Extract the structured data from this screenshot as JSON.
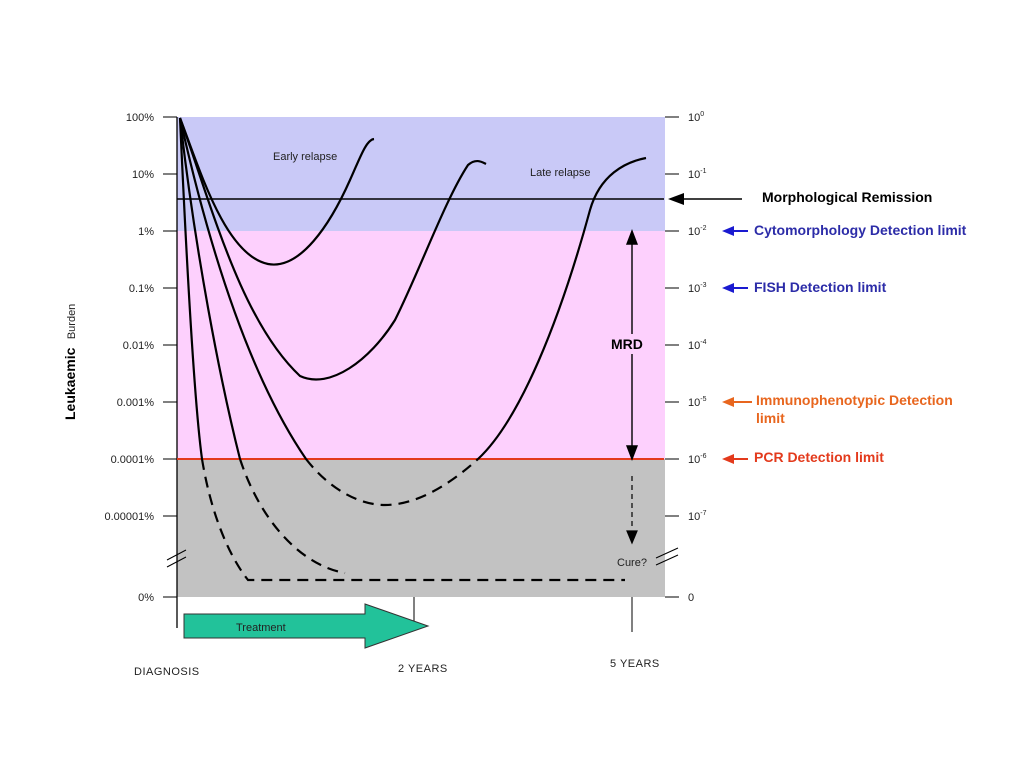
{
  "chart_data": {
    "type": "line",
    "ylabel_bold": "Leukaemic",
    "ylabel_rest": "Burden",
    "left_ticks": [
      "100%",
      "10%",
      "1%",
      "0.1%",
      "0.01%",
      "0.001%",
      "0.0001%",
      "0.00001%",
      "0%"
    ],
    "right_ticks": [
      {
        "base": "10",
        "exp": "0"
      },
      {
        "base": "10",
        "exp": "-1"
      },
      {
        "base": "10",
        "exp": "-2"
      },
      {
        "base": "10",
        "exp": "-3"
      },
      {
        "base": "10",
        "exp": "-4"
      },
      {
        "base": "10",
        "exp": "-5"
      },
      {
        "base": "10",
        "exp": "-6"
      },
      {
        "base": "10",
        "exp": "-7"
      },
      {
        "base": "0",
        "exp": ""
      }
    ],
    "x_labels": {
      "start": "DIAGNOSIS",
      "mid": "2 YEARS",
      "end": "5 YEARS"
    },
    "thresholds": {
      "morphological_remission": {
        "label": "Morphological Remission",
        "log10": -1.5,
        "color": "#000000"
      },
      "cytomorphology": {
        "label": "Cytomorphology Detection limit",
        "log10": -2,
        "color": "#2c2ca8"
      },
      "fish": {
        "label": "FISH Detection limit",
        "log10": -3,
        "color": "#2c2ca8"
      },
      "immunophenotypic": {
        "label_line1": "Immunophenotypic Detection",
        "label_line2": "limit",
        "log10": -5,
        "color": "#e8661e"
      },
      "pcr": {
        "label": "PCR Detection limit",
        "log10": -6,
        "color": "#e33a1c"
      }
    },
    "annotations": {
      "early_relapse": "Early relapse",
      "late_relapse": "Late relapse",
      "mrd": "MRD",
      "cure": "Cure?",
      "treatment": "Treatment"
    },
    "colors": {
      "above_remission": "#c9c9f7",
      "mrd_zone": "#fdd0fd",
      "below_pcr": "#c2c2c2",
      "treatment_arrow": "#22c29a",
      "arrow_blue": "#1a1ad0",
      "arrow_orange": "#e8661e",
      "arrow_red": "#e33a1c"
    }
  }
}
